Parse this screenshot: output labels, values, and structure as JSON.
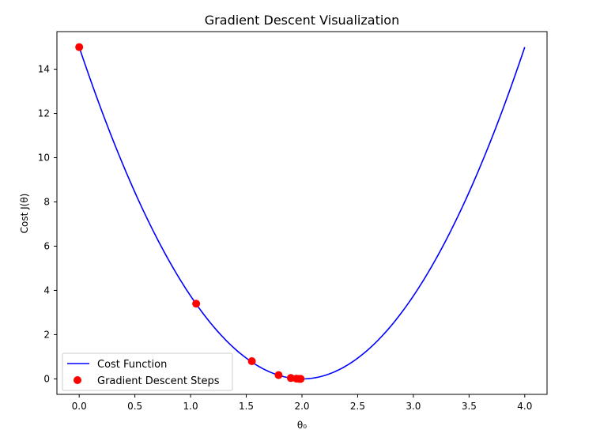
{
  "chart_data": {
    "type": "line",
    "title": "Gradient Descent Visualization",
    "xlabel": "θ₀",
    "ylabel": "Cost J(θ)",
    "xlim": [
      -0.2,
      4.2
    ],
    "ylim": [
      -0.7,
      15.7
    ],
    "x_ticks": [
      0.0,
      0.5,
      1.0,
      1.5,
      2.0,
      2.5,
      3.0,
      3.5,
      4.0
    ],
    "x_tick_labels": [
      "0.0",
      "0.5",
      "1.0",
      "1.5",
      "2.0",
      "2.5",
      "3.0",
      "3.5",
      "4.0"
    ],
    "y_ticks": [
      0,
      2,
      4,
      6,
      8,
      10,
      12,
      14
    ],
    "y_tick_labels": [
      "0",
      "2",
      "4",
      "6",
      "8",
      "10",
      "12",
      "14"
    ],
    "grid": false,
    "legend_position": "lower-left",
    "series": [
      {
        "name": "Cost Function",
        "type": "line",
        "color": "#0000ff",
        "function": "J(θ) = 3.75 (θ₀ − 2)²",
        "x_range": [
          0,
          4
        ]
      },
      {
        "name": "Gradient Descent Steps",
        "type": "scatter",
        "color": "#ff0000",
        "x": [
          0.0,
          1.05,
          1.55,
          1.79,
          1.9,
          1.95,
          1.975,
          1.988
        ],
        "y": [
          15.0,
          3.4,
          0.8,
          0.17,
          0.04,
          0.01,
          0.002,
          0.0005
        ]
      }
    ]
  }
}
